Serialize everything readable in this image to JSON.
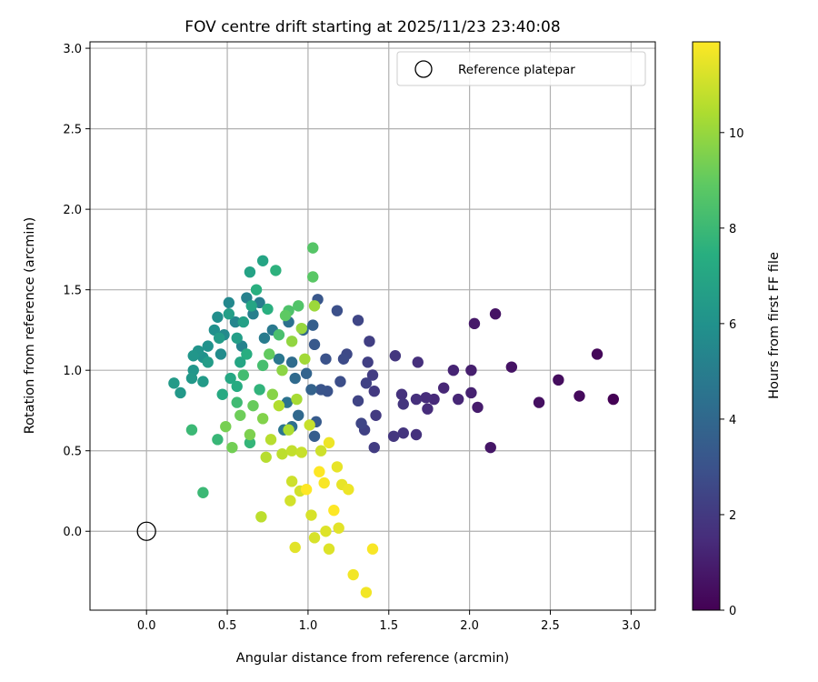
{
  "chart_data": {
    "type": "scatter",
    "title": "FOV centre drift starting at 2025/11/23 23:40:08",
    "xlabel": "Angular distance from reference (arcmin)",
    "ylabel": "Rotation from reference (arcmin)",
    "xlim": [
      -0.35,
      3.15
    ],
    "ylim": [
      -0.49,
      3.04
    ],
    "xticks": [
      0.0,
      0.5,
      1.0,
      1.5,
      2.0,
      2.5,
      3.0
    ],
    "xtick_labels": [
      "0.0",
      "0.5",
      "1.0",
      "1.5",
      "2.0",
      "2.5",
      "3.0"
    ],
    "yticks": [
      0.0,
      0.5,
      1.0,
      1.5,
      2.0,
      2.5,
      3.0
    ],
    "ytick_labels": [
      "0.0",
      "0.5",
      "1.0",
      "1.5",
      "2.0",
      "2.5",
      "3.0"
    ],
    "grid": true,
    "legend": {
      "position": "top-right",
      "entries": [
        "Reference platepar"
      ]
    },
    "reference_point": {
      "x": 0.0,
      "y": 0.0,
      "label": "Reference platepar"
    },
    "colorbar": {
      "label": "Hours from first FF file",
      "colormap": "viridis",
      "range": [
        0,
        11.9
      ],
      "ticks": [
        0,
        2,
        4,
        6,
        8,
        10
      ],
      "tick_labels": [
        "0",
        "2",
        "4",
        "6",
        "8",
        "10"
      ]
    },
    "points": [
      [
        2.89,
        0.82,
        0.0
      ],
      [
        2.79,
        1.1,
        0.2
      ],
      [
        2.68,
        0.84,
        0.3
      ],
      [
        2.55,
        0.94,
        0.4
      ],
      [
        2.43,
        0.8,
        0.5
      ],
      [
        2.26,
        1.02,
        0.6
      ],
      [
        2.16,
        1.35,
        0.6
      ],
      [
        2.13,
        0.52,
        0.7
      ],
      [
        2.03,
        1.29,
        0.8
      ],
      [
        2.05,
        0.77,
        0.9
      ],
      [
        2.01,
        1.0,
        1.0
      ],
      [
        2.01,
        0.86,
        1.1
      ],
      [
        1.9,
        1.0,
        1.2
      ],
      [
        1.93,
        0.82,
        1.3
      ],
      [
        1.84,
        0.89,
        1.3
      ],
      [
        1.78,
        0.82,
        1.4
      ],
      [
        1.73,
        0.83,
        1.5
      ],
      [
        1.74,
        0.76,
        1.5
      ],
      [
        1.67,
        0.82,
        1.6
      ],
      [
        1.68,
        1.05,
        1.6
      ],
      [
        1.67,
        0.6,
        1.7
      ],
      [
        1.58,
        0.85,
        1.7
      ],
      [
        1.59,
        0.79,
        1.8
      ],
      [
        1.59,
        0.61,
        1.8
      ],
      [
        1.54,
        1.09,
        1.9
      ],
      [
        1.53,
        0.59,
        1.9
      ],
      [
        1.41,
        0.87,
        2.0
      ],
      [
        1.42,
        0.72,
        2.0
      ],
      [
        1.4,
        0.97,
        2.1
      ],
      [
        1.41,
        0.52,
        2.1
      ],
      [
        1.38,
        1.18,
        2.2
      ],
      [
        1.37,
        1.05,
        2.2
      ],
      [
        1.36,
        0.92,
        2.3
      ],
      [
        1.35,
        0.63,
        2.3
      ],
      [
        1.31,
        0.81,
        2.4
      ],
      [
        1.31,
        1.31,
        2.5
      ],
      [
        1.33,
        0.67,
        2.5
      ],
      [
        1.24,
        1.1,
        2.6
      ],
      [
        1.22,
        1.07,
        2.7
      ],
      [
        1.2,
        0.93,
        2.8
      ],
      [
        1.18,
        1.37,
        2.9
      ],
      [
        1.12,
        0.87,
        3.0
      ],
      [
        1.11,
        1.07,
        3.0
      ],
      [
        1.08,
        0.88,
        3.1
      ],
      [
        1.06,
        1.44,
        3.2
      ],
      [
        1.04,
        1.16,
        3.3
      ],
      [
        1.05,
        0.68,
        3.4
      ],
      [
        1.04,
        0.59,
        3.5
      ],
      [
        1.03,
        1.28,
        3.6
      ],
      [
        1.02,
        0.88,
        3.7
      ],
      [
        0.99,
        0.98,
        3.8
      ],
      [
        0.97,
        1.25,
        3.9
      ],
      [
        0.94,
        0.72,
        4.0
      ],
      [
        0.92,
        0.95,
        4.1
      ],
      [
        0.9,
        1.05,
        4.2
      ],
      [
        0.9,
        0.65,
        4.3
      ],
      [
        0.88,
        1.3,
        4.4
      ],
      [
        0.87,
        0.8,
        4.5
      ],
      [
        0.85,
        0.63,
        4.6
      ],
      [
        0.82,
        1.07,
        4.7
      ],
      [
        0.78,
        1.25,
        4.8
      ],
      [
        0.73,
        1.2,
        4.9
      ],
      [
        0.7,
        1.42,
        5.0
      ],
      [
        0.66,
        1.35,
        5.1
      ],
      [
        0.62,
        1.45,
        5.2
      ],
      [
        0.59,
        1.15,
        5.3
      ],
      [
        0.55,
        1.3,
        5.4
      ],
      [
        0.51,
        1.42,
        5.5
      ],
      [
        0.48,
        1.22,
        5.6
      ],
      [
        0.46,
        1.1,
        5.7
      ],
      [
        0.44,
        1.33,
        5.8
      ],
      [
        0.42,
        1.25,
        5.9
      ],
      [
        0.38,
        1.15,
        6.0
      ],
      [
        0.35,
        1.08,
        6.0
      ],
      [
        0.32,
        1.12,
        6.1
      ],
      [
        0.29,
        1.09,
        6.2
      ],
      [
        0.29,
        1.0,
        6.2
      ],
      [
        0.28,
        0.95,
        6.3
      ],
      [
        0.21,
        0.86,
        6.3
      ],
      [
        0.17,
        0.92,
        6.4
      ],
      [
        0.35,
        0.93,
        6.4
      ],
      [
        0.38,
        1.05,
        6.5
      ],
      [
        0.45,
        1.2,
        6.5
      ],
      [
        0.51,
        1.35,
        6.6
      ],
      [
        0.56,
        1.2,
        6.6
      ],
      [
        0.6,
        1.3,
        6.7
      ],
      [
        0.64,
        1.61,
        6.8
      ],
      [
        0.72,
        1.68,
        6.9
      ],
      [
        0.65,
        1.4,
        7.0
      ],
      [
        0.58,
        1.05,
        7.0
      ],
      [
        0.52,
        0.95,
        7.1
      ],
      [
        0.47,
        0.85,
        7.2
      ],
      [
        0.56,
        0.9,
        7.3
      ],
      [
        0.62,
        1.1,
        7.4
      ],
      [
        0.68,
        1.5,
        7.5
      ],
      [
        0.75,
        1.38,
        7.5
      ],
      [
        0.8,
        1.62,
        7.6
      ],
      [
        0.7,
        0.88,
        7.7
      ],
      [
        0.64,
        0.55,
        7.8
      ],
      [
        0.44,
        0.57,
        7.9
      ],
      [
        0.28,
        0.63,
        8.0
      ],
      [
        0.35,
        0.24,
        8.0
      ],
      [
        0.56,
        0.8,
        8.1
      ],
      [
        0.6,
        0.97,
        8.2
      ],
      [
        0.72,
        1.03,
        8.3
      ],
      [
        0.82,
        1.22,
        8.4
      ],
      [
        0.88,
        1.37,
        8.5
      ],
      [
        0.94,
        1.4,
        8.6
      ],
      [
        1.03,
        1.76,
        8.7
      ],
      [
        1.03,
        1.58,
        8.8
      ],
      [
        0.86,
        1.34,
        8.9
      ],
      [
        0.76,
        1.1,
        9.0
      ],
      [
        0.66,
        0.78,
        9.1
      ],
      [
        0.58,
        0.72,
        9.2
      ],
      [
        0.53,
        0.52,
        9.3
      ],
      [
        0.49,
        0.65,
        9.4
      ],
      [
        0.64,
        0.6,
        9.5
      ],
      [
        0.72,
        0.7,
        9.6
      ],
      [
        0.78,
        0.85,
        9.7
      ],
      [
        0.84,
        1.0,
        9.8
      ],
      [
        0.9,
        1.18,
        9.9
      ],
      [
        0.96,
        1.26,
        10.0
      ],
      [
        1.04,
        1.4,
        10.1
      ],
      [
        0.98,
        1.07,
        10.2
      ],
      [
        0.93,
        0.82,
        10.3
      ],
      [
        0.88,
        0.63,
        10.4
      ],
      [
        0.82,
        0.78,
        10.5
      ],
      [
        0.77,
        0.57,
        10.6
      ],
      [
        0.74,
        0.46,
        10.6
      ],
      [
        0.71,
        0.09,
        10.7
      ],
      [
        0.84,
        0.48,
        10.7
      ],
      [
        0.9,
        0.5,
        10.8
      ],
      [
        0.96,
        0.49,
        10.9
      ],
      [
        1.01,
        0.66,
        10.9
      ],
      [
        1.08,
        0.5,
        11.0
      ],
      [
        0.9,
        0.31,
        11.0
      ],
      [
        0.89,
        0.19,
        11.1
      ],
      [
        0.95,
        0.25,
        11.1
      ],
      [
        1.02,
        0.1,
        11.2
      ],
      [
        1.04,
        -0.04,
        11.2
      ],
      [
        1.11,
        0.0,
        11.3
      ],
      [
        1.13,
        -0.11,
        11.3
      ],
      [
        0.92,
        -0.1,
        11.4
      ],
      [
        1.19,
        0.02,
        11.4
      ],
      [
        1.21,
        0.29,
        11.5
      ],
      [
        1.18,
        0.4,
        11.5
      ],
      [
        1.13,
        0.55,
        11.6
      ],
      [
        1.25,
        0.26,
        11.6
      ],
      [
        1.28,
        -0.27,
        11.7
      ],
      [
        1.36,
        -0.38,
        11.7
      ],
      [
        1.4,
        -0.11,
        11.8
      ],
      [
        1.1,
        0.3,
        11.8
      ],
      [
        1.16,
        0.13,
        11.9
      ],
      [
        1.07,
        0.37,
        11.9
      ],
      [
        0.99,
        0.26,
        11.9
      ]
    ]
  }
}
